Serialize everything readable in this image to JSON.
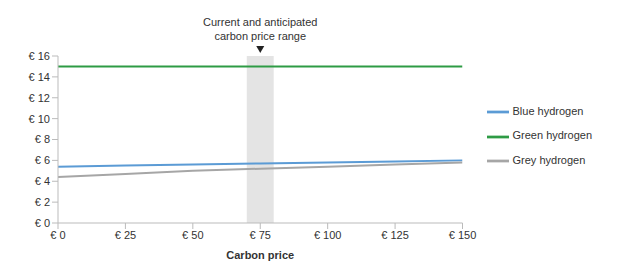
{
  "chart_data": {
    "type": "line",
    "x": [
      0,
      25,
      50,
      75,
      100,
      125,
      150
    ],
    "xlabel": "Carbon price",
    "series": [
      {
        "name": "Green hydrogen",
        "color": "#2e9b45",
        "values": [
          15,
          15,
          15,
          15,
          15,
          15,
          15
        ]
      },
      {
        "name": "Blue hydrogen",
        "color": "#5b9bd5",
        "values": [
          5.4,
          5.5,
          5.6,
          5.7,
          5.8,
          5.9,
          6.0
        ]
      },
      {
        "name": "Grey hydrogen",
        "color": "#a6a6a6",
        "values": [
          4.4,
          4.7,
          5.0,
          5.2,
          5.4,
          5.6,
          5.8
        ]
      }
    ],
    "xlim": [
      0,
      150
    ],
    "ylim": [
      0,
      16
    ],
    "xticks": [
      {
        "value": 0,
        "label": "€ 0"
      },
      {
        "value": 25,
        "label": "€ 25"
      },
      {
        "value": 50,
        "label": "€ 50"
      },
      {
        "value": 75,
        "label": "€ 75"
      },
      {
        "value": 100,
        "label": "€ 100"
      },
      {
        "value": 125,
        "label": "€ 125"
      },
      {
        "value": 150,
        "label": "€ 150"
      }
    ],
    "yticks": [
      {
        "value": 0,
        "label": "€ 0"
      },
      {
        "value": 2,
        "label": "€ 2"
      },
      {
        "value": 4,
        "label": "€ 4"
      },
      {
        "value": 6,
        "label": "€ 6"
      },
      {
        "value": 8,
        "label": "€ 8"
      },
      {
        "value": 10,
        "label": "€ 10"
      },
      {
        "value": 12,
        "label": "€ 12"
      },
      {
        "value": 14,
        "label": "€ 14"
      },
      {
        "value": 16,
        "label": "€ 16"
      }
    ],
    "grid": false,
    "legend": "right",
    "annotation": {
      "text": "Current and anticipated carbon price range",
      "x_range": [
        70,
        80
      ]
    }
  }
}
